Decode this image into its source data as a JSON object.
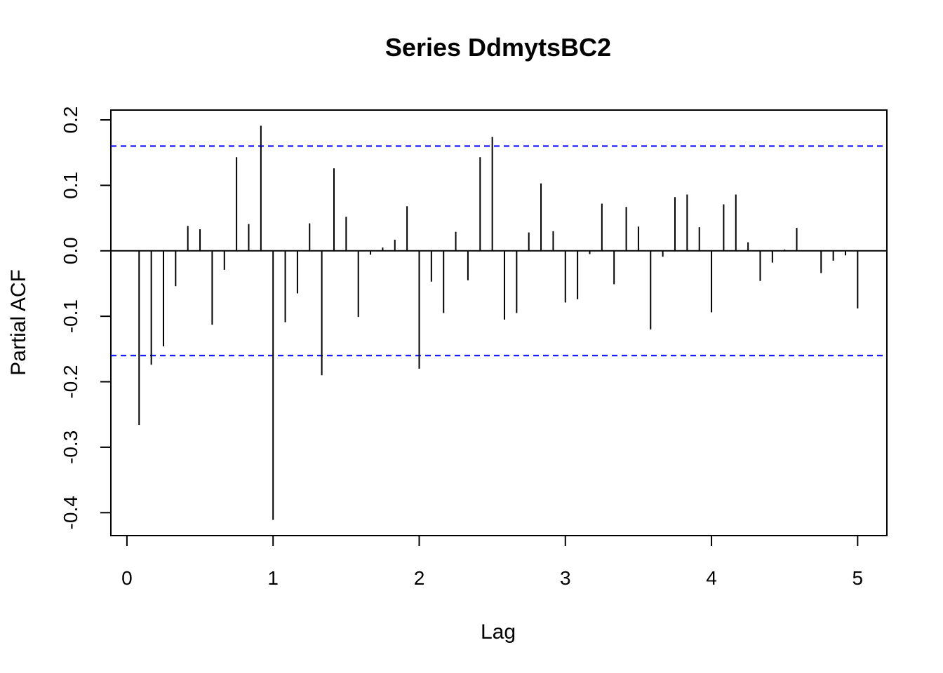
{
  "chart_data": {
    "type": "bar",
    "subtype": "pacf-spikes",
    "title": "Series  DdmytsBC2",
    "xlabel": "Lag",
    "ylabel": "Partial ACF",
    "xlim": [
      -0.11,
      5.2
    ],
    "ylim": [
      -0.435,
      0.215
    ],
    "x_ticks": [
      0,
      1,
      2,
      3,
      4,
      5
    ],
    "x_tick_labels": [
      "0",
      "1",
      "2",
      "3",
      "4",
      "5"
    ],
    "y_ticks": [
      -0.4,
      -0.3,
      -0.2,
      -0.1,
      0.0,
      0.1,
      0.2
    ],
    "y_tick_labels": [
      "-0.4",
      "-0.3",
      "-0.2",
      "-0.1",
      "0.0",
      "0.1",
      "0.2"
    ],
    "confidence_bound": 0.16,
    "confidence_color": "#0000ff",
    "spike_color": "#000000",
    "grid": false,
    "legend": "none",
    "lags": [
      0.0833,
      0.1667,
      0.25,
      0.3333,
      0.4167,
      0.5,
      0.5833,
      0.6667,
      0.75,
      0.8333,
      0.9167,
      1.0,
      1.0833,
      1.1667,
      1.25,
      1.3333,
      1.4167,
      1.5,
      1.5833,
      1.6667,
      1.75,
      1.8333,
      1.9167,
      2.0,
      2.0833,
      2.1667,
      2.25,
      2.3333,
      2.4167,
      2.5,
      2.5833,
      2.6667,
      2.75,
      2.8333,
      2.9167,
      3.0,
      3.0833,
      3.1667,
      3.25,
      3.3333,
      3.4167,
      3.5,
      3.5833,
      3.6667,
      3.75,
      3.8333,
      3.9167,
      4.0,
      4.0833,
      4.1667,
      4.25,
      4.3333,
      4.4167,
      4.5,
      4.5833,
      4.6667,
      4.75,
      4.8333,
      4.9167,
      5.0
    ],
    "values": [
      -0.266,
      -0.174,
      -0.146,
      -0.054,
      0.038,
      0.033,
      -0.113,
      -0.029,
      0.143,
      0.041,
      0.191,
      -0.411,
      -0.109,
      -0.065,
      0.042,
      -0.19,
      0.126,
      0.052,
      -0.101,
      -0.006,
      0.005,
      0.017,
      0.068,
      -0.18,
      -0.047,
      -0.095,
      0.029,
      -0.045,
      0.143,
      0.174,
      -0.105,
      -0.095,
      0.028,
      0.103,
      0.03,
      -0.079,
      -0.074,
      -0.005,
      0.072,
      -0.051,
      0.067,
      0.037,
      -0.12,
      -0.009,
      0.082,
      0.086,
      0.036,
      -0.094,
      0.071,
      0.086,
      0.013,
      -0.046,
      -0.018,
      0.002,
      0.035,
      0.0,
      -0.034,
      -0.015,
      -0.007,
      -0.088
    ]
  }
}
